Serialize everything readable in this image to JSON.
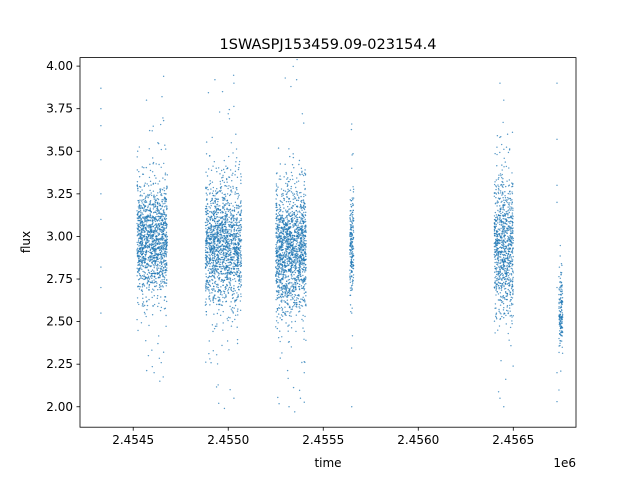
{
  "chart_data": {
    "type": "scatter",
    "title": "1SWASPJ153459.09-023154.4",
    "xlabel": "time",
    "ylabel": "flux",
    "x_offset_label": "1e6",
    "xlim": [
      2.45422,
      2.45683
    ],
    "ylim": [
      1.88,
      4.05
    ],
    "xticks": [
      2.4545,
      2.455,
      2.4555,
      2.456,
      2.4565
    ],
    "xtick_labels": [
      "2.4545",
      "2.4550",
      "2.4555",
      "2.4560",
      "2.4565"
    ],
    "yticks": [
      2.0,
      2.25,
      2.5,
      2.75,
      3.0,
      3.25,
      3.5,
      3.75,
      4.0
    ],
    "ytick_labels": [
      "2.00",
      "2.25",
      "2.50",
      "2.75",
      "3.00",
      "3.25",
      "3.50",
      "3.75",
      "4.00"
    ],
    "grid": false,
    "marker_color": "#1f77b4",
    "series": [
      {
        "points": [
          [
            2.45433,
            3.87
          ],
          [
            2.45433,
            3.75
          ],
          [
            2.45433,
            3.65
          ],
          [
            2.45433,
            3.45
          ],
          [
            2.45433,
            3.25
          ],
          [
            2.45433,
            3.1
          ],
          [
            2.45433,
            2.82
          ],
          [
            2.45433,
            2.7
          ],
          [
            2.45433,
            2.55
          ],
          [
            2.45457,
            3.8
          ],
          [
            2.4546,
            3.62
          ],
          [
            2.45463,
            3.55
          ],
          [
            2.45466,
            3.94
          ],
          [
            2.45466,
            3.68
          ],
          [
            2.45458,
            2.3
          ],
          [
            2.45461,
            2.2
          ],
          [
            2.45464,
            2.15
          ],
          [
            2.45466,
            2.32
          ],
          [
            2.45493,
            3.92
          ],
          [
            2.45497,
            3.85
          ],
          [
            2.455,
            3.72
          ],
          [
            2.45503,
            3.9
          ],
          [
            2.45504,
            3.6
          ],
          [
            2.45495,
            2.02
          ],
          [
            2.45498,
            1.99
          ],
          [
            2.45501,
            2.1
          ],
          [
            2.45503,
            2.05
          ],
          [
            2.4553,
            3.93
          ],
          [
            2.45533,
            3.88
          ],
          [
            2.45536,
            3.92
          ],
          [
            2.45539,
            3.72
          ],
          [
            2.45532,
            2.0
          ],
          [
            2.45535,
            1.97
          ],
          [
            2.45538,
            2.05
          ],
          [
            2.4554,
            2.2
          ],
          [
            2.45565,
            3.66
          ],
          [
            2.45565,
            3.4
          ],
          [
            2.45565,
            2.55
          ],
          [
            2.45565,
            2.0
          ],
          [
            2.45643,
            3.9
          ],
          [
            2.45645,
            3.8
          ],
          [
            2.45647,
            3.6
          ],
          [
            2.45645,
            2.0
          ],
          [
            2.45643,
            2.05
          ],
          [
            2.45673,
            3.9
          ],
          [
            2.45673,
            3.57
          ],
          [
            2.45673,
            3.3
          ],
          [
            2.45673,
            3.2
          ],
          [
            2.45673,
            2.7
          ],
          [
            2.45673,
            2.2
          ],
          [
            2.45673,
            2.03
          ]
        ],
        "clusters": [
          {
            "x": [
              2.45452,
              2.45468
            ],
            "mean": 2.98,
            "sd": 0.16,
            "n": 1400
          },
          {
            "x": [
              2.45488,
              2.45507
            ],
            "mean": 2.95,
            "sd": 0.18,
            "n": 1600
          },
          {
            "x": [
              2.45525,
              2.45541
            ],
            "mean": 2.92,
            "sd": 0.18,
            "n": 1600
          },
          {
            "x": [
              2.45564,
              2.45566
            ],
            "mean": 2.95,
            "sd": 0.14,
            "n": 200
          },
          {
            "x": [
              2.4564,
              2.4565
            ],
            "mean": 2.95,
            "sd": 0.2,
            "n": 900
          },
          {
            "x": [
              2.45674,
              2.45676
            ],
            "mean": 2.55,
            "sd": 0.12,
            "n": 150
          }
        ]
      }
    ]
  }
}
